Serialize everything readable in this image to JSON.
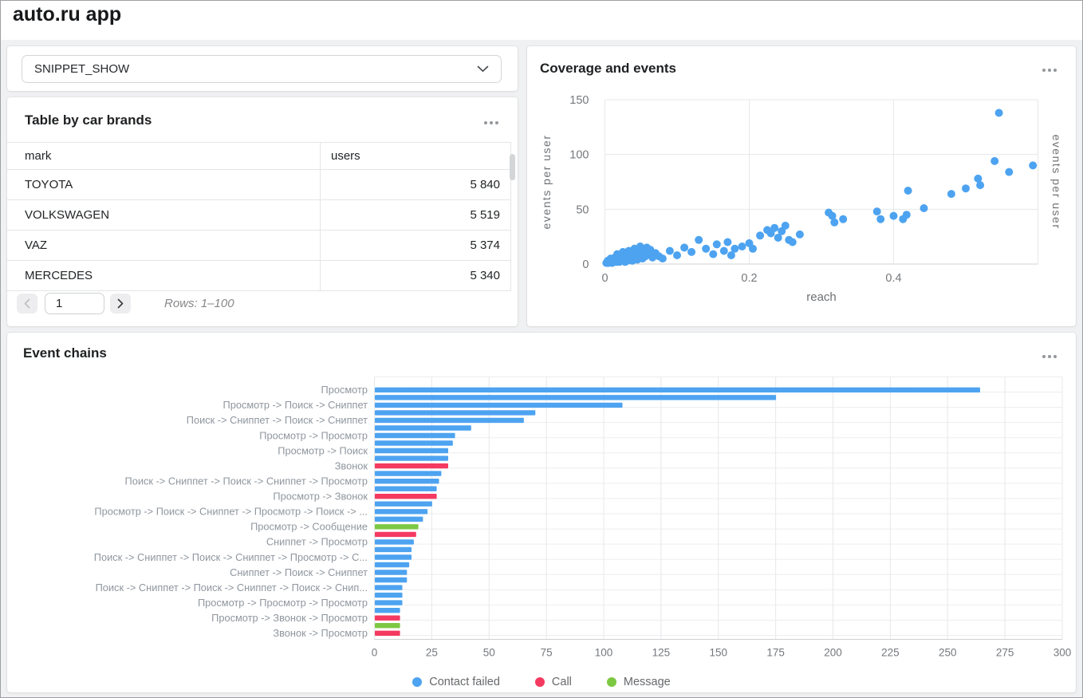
{
  "page": {
    "title": "auto.ru app"
  },
  "icons": {
    "select_chevron": "chevron-down-icon",
    "card_menu": "ellipsis-icon",
    "prev_page": "chevron-left-icon",
    "next_page": "chevron-right-icon"
  },
  "selector": {
    "value": "SNIPPET_SHOW"
  },
  "table_card": {
    "title": "Table by car brands",
    "columns": [
      "mark",
      "users"
    ],
    "rows": [
      [
        "TOYOTA",
        "5 840"
      ],
      [
        "VOLKSWAGEN",
        "5 519"
      ],
      [
        "VAZ",
        "5 374"
      ],
      [
        "MERCEDES",
        "5 340"
      ]
    ],
    "pagination": {
      "page": "1",
      "rows_label": "Rows: 1–100"
    }
  },
  "scatter_card": {
    "title": "Coverage and events"
  },
  "chains_card": {
    "title": "Event chains"
  },
  "colors": {
    "contact_failed": "#4da3f0",
    "call": "#f43a60",
    "message": "#7dc843",
    "grid": "#e7e8ea",
    "axis": "#cfd1d3",
    "tick_text": "#75787c",
    "chain_label": "#8f969e"
  },
  "chart_data": [
    {
      "type": "scatter",
      "title": "Coverage and events",
      "xlabel": "reach",
      "ylabel_left": "events per user",
      "ylabel_right": "events per user",
      "xlim": [
        0,
        0.6
      ],
      "ylim": [
        0,
        150
      ],
      "xticks": [
        0,
        0.2,
        0.4
      ],
      "yticks": [
        0,
        50,
        100,
        150
      ],
      "grid": true,
      "point_color": "#4da3f0",
      "points": [
        [
          0.002,
          1
        ],
        [
          0.004,
          3
        ],
        [
          0.005,
          1
        ],
        [
          0.007,
          2
        ],
        [
          0.008,
          5
        ],
        [
          0.01,
          1
        ],
        [
          0.011,
          3
        ],
        [
          0.013,
          2
        ],
        [
          0.014,
          6
        ],
        [
          0.016,
          2
        ],
        [
          0.017,
          9
        ],
        [
          0.018,
          4
        ],
        [
          0.02,
          2
        ],
        [
          0.021,
          6
        ],
        [
          0.023,
          3
        ],
        [
          0.025,
          11
        ],
        [
          0.026,
          5
        ],
        [
          0.028,
          2
        ],
        [
          0.03,
          7
        ],
        [
          0.031,
          3
        ],
        [
          0.033,
          12
        ],
        [
          0.034,
          5
        ],
        [
          0.036,
          8
        ],
        [
          0.038,
          3
        ],
        [
          0.04,
          6
        ],
        [
          0.041,
          14
        ],
        [
          0.043,
          9
        ],
        [
          0.045,
          4
        ],
        [
          0.047,
          7
        ],
        [
          0.049,
          16
        ],
        [
          0.05,
          10
        ],
        [
          0.052,
          5
        ],
        [
          0.054,
          12
        ],
        [
          0.056,
          7
        ],
        [
          0.058,
          15
        ],
        [
          0.06,
          9
        ],
        [
          0.063,
          13
        ],
        [
          0.066,
          6
        ],
        [
          0.07,
          10
        ],
        [
          0.075,
          7
        ],
        [
          0.08,
          5
        ],
        [
          0.09,
          12
        ],
        [
          0.1,
          8
        ],
        [
          0.11,
          15
        ],
        [
          0.12,
          11
        ],
        [
          0.13,
          22
        ],
        [
          0.14,
          14
        ],
        [
          0.15,
          9
        ],
        [
          0.155,
          18
        ],
        [
          0.165,
          12
        ],
        [
          0.17,
          20
        ],
        [
          0.175,
          8
        ],
        [
          0.18,
          14
        ],
        [
          0.19,
          16
        ],
        [
          0.2,
          19
        ],
        [
          0.205,
          14
        ],
        [
          0.215,
          26
        ],
        [
          0.225,
          31
        ],
        [
          0.23,
          28
        ],
        [
          0.235,
          33
        ],
        [
          0.24,
          24
        ],
        [
          0.245,
          30
        ],
        [
          0.25,
          35
        ],
        [
          0.255,
          22
        ],
        [
          0.26,
          20
        ],
        [
          0.27,
          27
        ],
        [
          0.31,
          47
        ],
        [
          0.315,
          44
        ],
        [
          0.318,
          38
        ],
        [
          0.33,
          41
        ],
        [
          0.377,
          48
        ],
        [
          0.382,
          41
        ],
        [
          0.4,
          44
        ],
        [
          0.413,
          41
        ],
        [
          0.418,
          45
        ],
        [
          0.42,
          67
        ],
        [
          0.442,
          51
        ],
        [
          0.48,
          64
        ],
        [
          0.5,
          69
        ],
        [
          0.517,
          78
        ],
        [
          0.52,
          72
        ],
        [
          0.54,
          94
        ],
        [
          0.546,
          138
        ],
        [
          0.56,
          84
        ],
        [
          0.593,
          90
        ]
      ]
    },
    {
      "type": "bar",
      "orientation": "horizontal",
      "title": "Event chains",
      "xlim": [
        0,
        300
      ],
      "xticks": [
        0,
        25,
        50,
        75,
        100,
        125,
        150,
        175,
        200,
        225,
        250,
        275,
        300
      ],
      "grid": true,
      "legend_position": "bottom",
      "legend": [
        {
          "name": "Contact failed",
          "color": "#4da3f0"
        },
        {
          "name": "Call",
          "color": "#f43a60"
        },
        {
          "name": "Message",
          "color": "#7dc843"
        }
      ],
      "rows": [
        {
          "label": "Просмотр",
          "value": 264,
          "series": "Contact failed"
        },
        {
          "label": "",
          "value": 175,
          "series": "Contact failed"
        },
        {
          "label": "Просмотр -> Поиск -> Сниппет",
          "value": 108,
          "series": "Contact failed"
        },
        {
          "label": "",
          "value": 70,
          "series": "Contact failed"
        },
        {
          "label": "Поиск -> Сниппет -> Поиск -> Сниппет",
          "value": 65,
          "series": "Contact failed"
        },
        {
          "label": "",
          "value": 42,
          "series": "Contact failed"
        },
        {
          "label": "Просмотр -> Просмотр",
          "value": 35,
          "series": "Contact failed"
        },
        {
          "label": "",
          "value": 34,
          "series": "Contact failed"
        },
        {
          "label": "Просмотр -> Поиск",
          "value": 32,
          "series": "Contact failed"
        },
        {
          "label": "",
          "value": 32,
          "series": "Contact failed"
        },
        {
          "label": "Звонок",
          "value": 32,
          "series": "Call"
        },
        {
          "label": "",
          "value": 29,
          "series": "Contact failed"
        },
        {
          "label": "Поиск -> Сниппет -> Поиск -> Сниппет -> Просмотр",
          "value": 28,
          "series": "Contact failed"
        },
        {
          "label": "",
          "value": 27,
          "series": "Contact failed"
        },
        {
          "label": "Просмотр -> Звонок",
          "value": 27,
          "series": "Call"
        },
        {
          "label": "",
          "value": 25,
          "series": "Contact failed"
        },
        {
          "label": "Просмотр -> Поиск -> Сниппет -> Просмотр -> Поиск -> ...",
          "value": 23,
          "series": "Contact failed"
        },
        {
          "label": "",
          "value": 21,
          "series": "Contact failed"
        },
        {
          "label": "Просмотр -> Сообщение",
          "value": 19,
          "series": "Message"
        },
        {
          "label": "",
          "value": 18,
          "series": "Call"
        },
        {
          "label": "Сниппет -> Просмотр",
          "value": 17,
          "series": "Contact failed"
        },
        {
          "label": "",
          "value": 16,
          "series": "Contact failed"
        },
        {
          "label": "Поиск -> Сниппет -> Поиск -> Сниппет -> Просмотр -> С...",
          "value": 16,
          "series": "Contact failed"
        },
        {
          "label": "",
          "value": 15,
          "series": "Contact failed"
        },
        {
          "label": "Сниппет -> Поиск -> Сниппет",
          "value": 14,
          "series": "Contact failed"
        },
        {
          "label": "",
          "value": 14,
          "series": "Contact failed"
        },
        {
          "label": "Поиск -> Сниппет -> Поиск -> Сниппет -> Поиск -> Снип...",
          "value": 12,
          "series": "Contact failed"
        },
        {
          "label": "",
          "value": 12,
          "series": "Contact failed"
        },
        {
          "label": "Просмотр -> Просмотр -> Просмотр",
          "value": 12,
          "series": "Contact failed"
        },
        {
          "label": "",
          "value": 11,
          "series": "Contact failed"
        },
        {
          "label": "Просмотр -> Звонок -> Просмотр",
          "value": 11,
          "series": "Call"
        },
        {
          "label": "",
          "value": 11,
          "series": "Message"
        },
        {
          "label": "Звонок -> Просмотр",
          "value": 11,
          "series": "Call"
        }
      ]
    }
  ]
}
